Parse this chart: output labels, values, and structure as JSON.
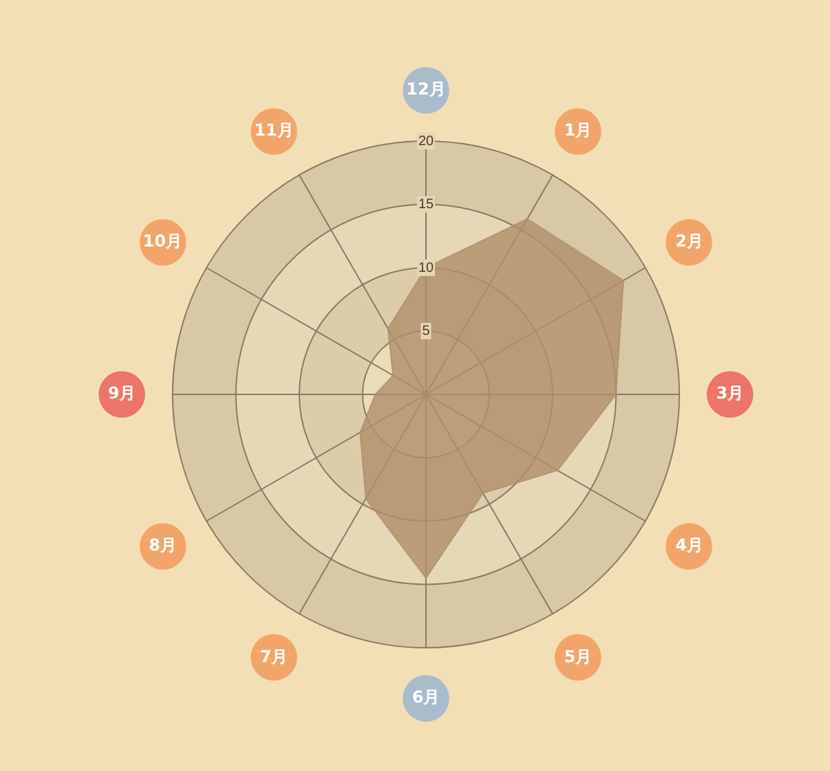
{
  "chart_data": {
    "type": "radar",
    "categories": [
      "12月",
      "1月",
      "2月",
      "3月",
      "4月",
      "5月",
      "6月",
      "7月",
      "8月",
      "9月",
      "10月",
      "11月"
    ],
    "series": [
      {
        "color": "#b0906c",
        "values": [
          10,
          16,
          18,
          15,
          12,
          9,
          14.5,
          9.5,
          6,
          4,
          3,
          6
        ]
      }
    ],
    "ylim": [
      0,
      20
    ],
    "yticks": [
      5,
      10,
      15,
      20
    ],
    "grid": true,
    "legend": false
  }
}
